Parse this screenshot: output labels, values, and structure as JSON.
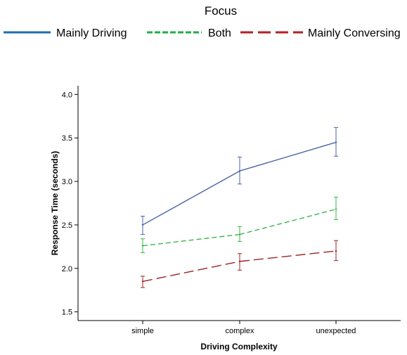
{
  "chart_data": {
    "type": "line",
    "legend_title": "Focus",
    "legend_position": "top",
    "categories": [
      "simple",
      "complex",
      "unexpected"
    ],
    "xlabel": "Driving Complexity",
    "ylabel": "Response Time (seconds)",
    "ylim": [
      1.4,
      4.1
    ],
    "yticks": [
      "1.5",
      "2.0",
      "2.5",
      "3.0",
      "3.5",
      "4.0"
    ],
    "grid": false,
    "series": [
      {
        "name": "Mainly Driving",
        "values": [
          2.5,
          3.12,
          3.45
        ],
        "err_low": [
          2.39,
          2.97,
          3.29
        ],
        "err_high": [
          2.6,
          3.28,
          3.62
        ],
        "color": "#4a63a8",
        "legend_color": "#1a6fb0",
        "dash": "solid"
      },
      {
        "name": "Both",
        "values": [
          2.26,
          2.39,
          2.68
        ],
        "err_low": [
          2.18,
          2.31,
          2.56
        ],
        "err_high": [
          2.34,
          2.48,
          2.82
        ],
        "color": "#3ab54a",
        "legend_color": "#1fae4a",
        "dash": "short"
      },
      {
        "name": "Mainly Conversing",
        "values": [
          1.85,
          2.08,
          2.2
        ],
        "err_low": [
          1.78,
          1.98,
          2.09
        ],
        "err_high": [
          1.91,
          2.17,
          2.32
        ],
        "color": "#9b2326",
        "legend_color": "#b51f24",
        "dash": "long"
      }
    ]
  }
}
